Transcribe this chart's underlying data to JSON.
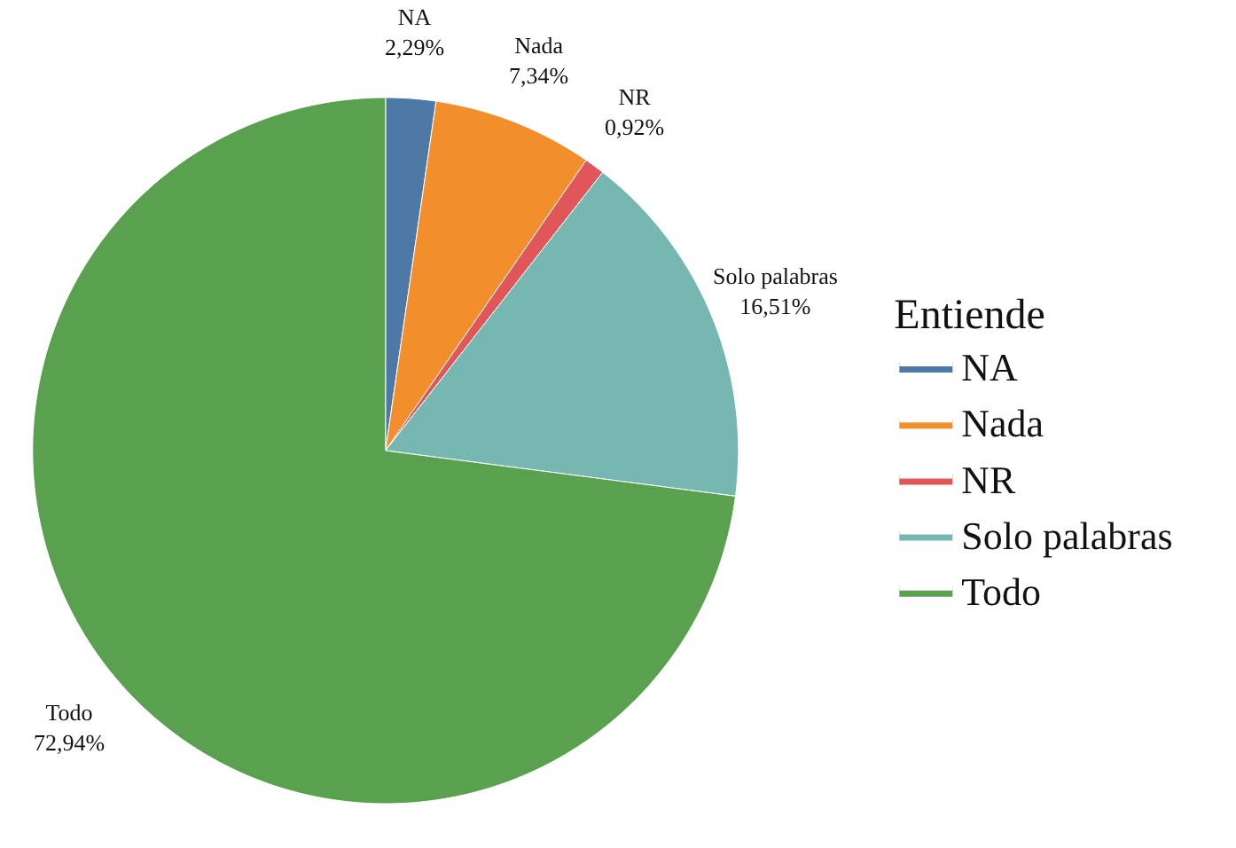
{
  "chart_data": {
    "type": "pie",
    "categories": [
      "NA",
      "Nada",
      "NR",
      "Solo palabras",
      "Todo"
    ],
    "values": [
      2.29,
      7.34,
      0.92,
      16.51,
      72.94
    ],
    "colors": [
      "#4e79a7",
      "#f28e2b",
      "#e15759",
      "#76b7b2",
      "#59a14f"
    ],
    "value_labels": [
      "2,29%",
      "7,34%",
      "0,92%",
      "16,51%",
      "72,94%"
    ],
    "legend_title": "Entiende",
    "legend": "right"
  }
}
